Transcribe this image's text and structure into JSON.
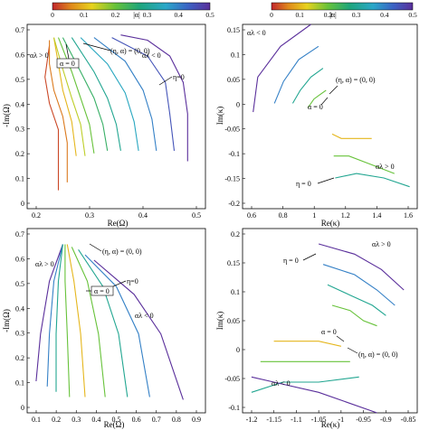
{
  "chart_data": [
    {
      "type": "line",
      "xlabel": "Re(Ω)",
      "ylabel": "-Im(Ω)",
      "xlim": [
        0.15,
        0.55
      ],
      "ylim": [
        0.0,
        0.7
      ],
      "xticks": [
        "0.2",
        "0.3",
        "0.4",
        "0.5"
      ],
      "yticks": [
        "0",
        "0.1",
        "0.2",
        "0.3",
        "0.4",
        "0.5",
        "0.6",
        "0.7"
      ],
      "colorbar": {
        "label": "|α|",
        "range": [
          0,
          0.5
        ],
        "ticks": [
          "0",
          "0.1",
          "0.2",
          "0.3",
          "0.4",
          "0.5"
        ]
      },
      "annotations": [
        "αλ > 0",
        "(η, α) = (0, 0)",
        "α = 0",
        "αλ < 0",
        "η=0"
      ],
      "series": [
        {
          "alpha": 0.02,
          "x": [
            0.2,
            0.19,
            0.2,
            0.22,
            0.22,
            0.22
          ],
          "y": [
            0.62,
            0.5,
            0.4,
            0.3,
            0.2,
            0.07
          ]
        },
        {
          "alpha": 0.05,
          "x": [
            0.2,
            0.2,
            0.21,
            0.23,
            0.24,
            0.24
          ],
          "y": [
            0.64,
            0.55,
            0.45,
            0.35,
            0.25,
            0.1
          ]
        },
        {
          "alpha": 0.1,
          "x": [
            0.21,
            0.22,
            0.23,
            0.25,
            0.26
          ],
          "y": [
            0.65,
            0.55,
            0.45,
            0.33,
            0.2
          ]
        },
        {
          "alpha": 0.15,
          "x": [
            0.21,
            0.23,
            0.25,
            0.27,
            0.28
          ],
          "y": [
            0.65,
            0.53,
            0.42,
            0.32,
            0.2
          ]
        },
        {
          "alpha": 0.2,
          "x": [
            0.22,
            0.25,
            0.27,
            0.29,
            0.3
          ],
          "y": [
            0.65,
            0.52,
            0.42,
            0.32,
            0.21
          ]
        },
        {
          "alpha": 0.25,
          "x": [
            0.23,
            0.27,
            0.3,
            0.32,
            0.33
          ],
          "y": [
            0.65,
            0.52,
            0.42,
            0.32,
            0.22
          ]
        },
        {
          "alpha": 0.3,
          "x": [
            0.25,
            0.3,
            0.33,
            0.35,
            0.36
          ],
          "y": [
            0.65,
            0.52,
            0.42,
            0.32,
            0.22
          ]
        },
        {
          "alpha": 0.35,
          "x": [
            0.27,
            0.33,
            0.37,
            0.39,
            0.4
          ],
          "y": [
            0.65,
            0.55,
            0.44,
            0.33,
            0.22
          ]
        },
        {
          "alpha": 0.4,
          "x": [
            0.3,
            0.37,
            0.41,
            0.43,
            0.44
          ],
          "y": [
            0.65,
            0.56,
            0.45,
            0.34,
            0.22
          ]
        },
        {
          "alpha": 0.45,
          "x": [
            0.34,
            0.42,
            0.46,
            0.47,
            0.48
          ],
          "y": [
            0.65,
            0.58,
            0.48,
            0.36,
            0.22
          ]
        },
        {
          "alpha": 0.5,
          "x": [
            0.36,
            0.42,
            0.47,
            0.5,
            0.51,
            0.51
          ],
          "y": [
            0.66,
            0.64,
            0.58,
            0.48,
            0.36,
            0.18
          ]
        }
      ]
    },
    {
      "type": "line",
      "xlabel": "Re(κ)",
      "ylabel": "Im(κ)",
      "xlim": [
        0.45,
        1.6
      ],
      "ylim": [
        -0.22,
        0.2
      ],
      "xticks": [
        "0.6",
        "0.8",
        "1",
        "1.2",
        "1.4",
        "1.6"
      ],
      "yticks": [
        "-0.2",
        "-0.15",
        "-0.1",
        "-0.05",
        "0",
        "0.05",
        "0.1",
        "0.15"
      ],
      "colorbar": {
        "label": "|α|",
        "range": [
          0,
          0.5
        ],
        "ticks": [
          "0",
          "0.1",
          "0.2",
          "0.3",
          "0.4",
          "0.5"
        ]
      },
      "annotations": [
        "αλ < 0",
        "(η, α) = (0, 0)",
        "α = 0",
        "η = 0",
        "αλ > 0"
      ],
      "series": [
        {
          "alpha": 0.5,
          "x": [
            0.9,
            0.7,
            0.55,
            0.52
          ],
          "y": [
            0.2,
            0.15,
            0.08,
            0.0
          ]
        },
        {
          "alpha": 0.4,
          "x": [
            0.95,
            0.82,
            0.72,
            0.66
          ],
          "y": [
            0.15,
            0.12,
            0.07,
            0.02
          ]
        },
        {
          "alpha": 0.3,
          "x": [
            0.98,
            0.9,
            0.83,
            0.78
          ],
          "y": [
            0.1,
            0.08,
            0.05,
            0.02
          ]
        },
        {
          "alpha": 0.2,
          "x": [
            1.0,
            0.96,
            0.92,
            0.88
          ],
          "y": [
            0.05,
            0.04,
            0.03,
            0.01
          ]
        },
        {
          "alpha": 0.1,
          "x": [
            1.04,
            1.1,
            1.2,
            1.3
          ],
          "y": [
            -0.05,
            -0.06,
            -0.06,
            -0.06
          ]
        },
        {
          "alpha": 0.2,
          "x": [
            1.05,
            1.15,
            1.3,
            1.45
          ],
          "y": [
            -0.1,
            -0.1,
            -0.12,
            -0.14
          ]
        },
        {
          "alpha": 0.3,
          "x": [
            1.06,
            1.2,
            1.38,
            1.55
          ],
          "y": [
            -0.15,
            -0.14,
            -0.15,
            -0.17
          ]
        }
      ]
    },
    {
      "type": "line",
      "xlabel": "Re(Ω)",
      "ylabel": "-Im(Ω)",
      "xlim": [
        0.1,
        0.9
      ],
      "ylim": [
        0.0,
        0.7
      ],
      "xticks": [
        "0.1",
        "0.2",
        "0.3",
        "0.4",
        "0.5",
        "0.6",
        "0.7",
        "0.8",
        "0.9"
      ],
      "yticks": [
        "0",
        "0.1",
        "0.2",
        "0.3",
        "0.4",
        "0.5",
        "0.6",
        "0.7"
      ],
      "annotations": [
        "αλ > 0",
        "(η, α) = (0, 0)",
        "α = 0",
        "η=0",
        "αλ < 0"
      ],
      "series": [
        {
          "alpha": 0.5,
          "x": [
            0.26,
            0.2,
            0.16,
            0.14
          ],
          "y": [
            0.64,
            0.5,
            0.3,
            0.12
          ]
        },
        {
          "alpha": 0.4,
          "x": [
            0.26,
            0.22,
            0.2,
            0.19
          ],
          "y": [
            0.64,
            0.5,
            0.3,
            0.1
          ]
        },
        {
          "alpha": 0.3,
          "x": [
            0.26,
            0.24,
            0.23,
            0.23
          ],
          "y": [
            0.64,
            0.5,
            0.3,
            0.08
          ]
        },
        {
          "alpha": 0.2,
          "x": [
            0.27,
            0.27,
            0.28,
            0.29
          ],
          "y": [
            0.64,
            0.5,
            0.3,
            0.06
          ]
        },
        {
          "alpha": 0.1,
          "x": [
            0.28,
            0.31,
            0.34,
            0.36
          ],
          "y": [
            0.64,
            0.5,
            0.3,
            0.06
          ]
        },
        {
          "alpha": 0.2,
          "x": [
            0.3,
            0.37,
            0.42,
            0.45
          ],
          "y": [
            0.63,
            0.5,
            0.3,
            0.06
          ]
        },
        {
          "alpha": 0.3,
          "x": [
            0.33,
            0.44,
            0.51,
            0.55
          ],
          "y": [
            0.62,
            0.48,
            0.3,
            0.06
          ]
        },
        {
          "alpha": 0.4,
          "x": [
            0.36,
            0.5,
            0.6,
            0.65
          ],
          "y": [
            0.6,
            0.48,
            0.3,
            0.06
          ]
        },
        {
          "alpha": 0.5,
          "x": [
            0.4,
            0.58,
            0.7,
            0.76,
            0.8
          ],
          "y": [
            0.58,
            0.45,
            0.3,
            0.15,
            0.05
          ]
        }
      ]
    },
    {
      "type": "line",
      "xlabel": "Re(κ)",
      "ylabel": "Im(κ)",
      "xlim": [
        -1.22,
        -0.83
      ],
      "ylim": [
        -0.14,
        0.22
      ],
      "xticks": [
        "-1.2",
        "-1.15",
        "-1.1",
        "-1.05",
        "-1",
        "-0.95",
        "-0.9",
        "-0.85"
      ],
      "yticks": [
        "-0.1",
        "-0.05",
        "0",
        "0.05",
        "0.1",
        "0.15",
        "0.2"
      ],
      "annotations": [
        "αλ > 0",
        "η = 0",
        "α = 0",
        "(η, α) = (0, 0)",
        "αλ < 0"
      ],
      "series": [
        {
          "alpha": 0.5,
          "x": [
            -1.05,
            -0.97,
            -0.91,
            -0.86
          ],
          "y": [
            0.19,
            0.17,
            0.14,
            0.1
          ]
        },
        {
          "alpha": 0.4,
          "x": [
            -1.04,
            -0.97,
            -0.92,
            -0.88
          ],
          "y": [
            0.15,
            0.13,
            0.1,
            0.07
          ]
        },
        {
          "alpha": 0.3,
          "x": [
            -1.03,
            -0.98,
            -0.93,
            -0.9
          ],
          "y": [
            0.11,
            0.09,
            0.07,
            0.05
          ]
        },
        {
          "alpha": 0.2,
          "x": [
            -1.02,
            -0.98,
            -0.95,
            -0.92
          ],
          "y": [
            0.07,
            0.06,
            0.04,
            0.03
          ]
        },
        {
          "alpha": 0.1,
          "x": [
            -1.0,
            -1.05,
            -1.1,
            -1.15
          ],
          "y": [
            -0.01,
            0.0,
            0.0,
            0.0
          ]
        },
        {
          "alpha": 0.2,
          "x": [
            -0.98,
            -1.05,
            -1.12,
            -1.18
          ],
          "y": [
            -0.04,
            -0.04,
            -0.04,
            -0.04
          ]
        },
        {
          "alpha": 0.3,
          "x": [
            -0.96,
            -1.05,
            -1.13,
            -1.2
          ],
          "y": [
            -0.07,
            -0.08,
            -0.08,
            -0.1
          ]
        },
        {
          "alpha": 0.5,
          "x": [
            -0.92,
            -1.05,
            -1.15,
            -1.2
          ],
          "y": [
            -0.14,
            -0.1,
            -0.08,
            -0.07
          ]
        }
      ]
    }
  ]
}
